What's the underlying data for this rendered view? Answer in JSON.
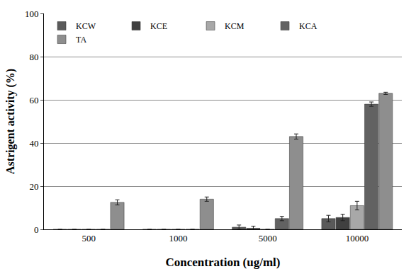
{
  "chart_data": {
    "type": "bar",
    "x_label": "Concentration (ug/ml)",
    "y_label": "Astrigent activity (%)",
    "categories": [
      "500",
      "1000",
      "5000",
      "10000"
    ],
    "series": [
      {
        "name": "KCW",
        "color": "#5a5a5a",
        "values": [
          0,
          0,
          1,
          5
        ],
        "errors": [
          0,
          0,
          1,
          1.5
        ]
      },
      {
        "name": "KCE",
        "color": "#404040",
        "values": [
          0,
          0,
          0.5,
          5.5
        ],
        "errors": [
          0,
          0,
          1,
          1.5
        ]
      },
      {
        "name": "KCM",
        "color": "#a8a8a8",
        "values": [
          0,
          0,
          0,
          11
        ],
        "errors": [
          0,
          0,
          0,
          2
        ]
      },
      {
        "name": "KCA",
        "color": "#626262",
        "values": [
          0,
          0,
          5,
          58
        ],
        "errors": [
          0,
          0,
          1,
          1
        ]
      },
      {
        "name": "TA",
        "color": "#8e8e8e",
        "values": [
          12.5,
          14,
          43,
          63
        ],
        "errors": [
          1.2,
          1,
          1.2,
          0.5
        ]
      }
    ],
    "ylim": [
      0,
      100
    ],
    "yticks": [
      0,
      20,
      40,
      60,
      80,
      100
    ],
    "grid": true,
    "legend": "upper left"
  }
}
